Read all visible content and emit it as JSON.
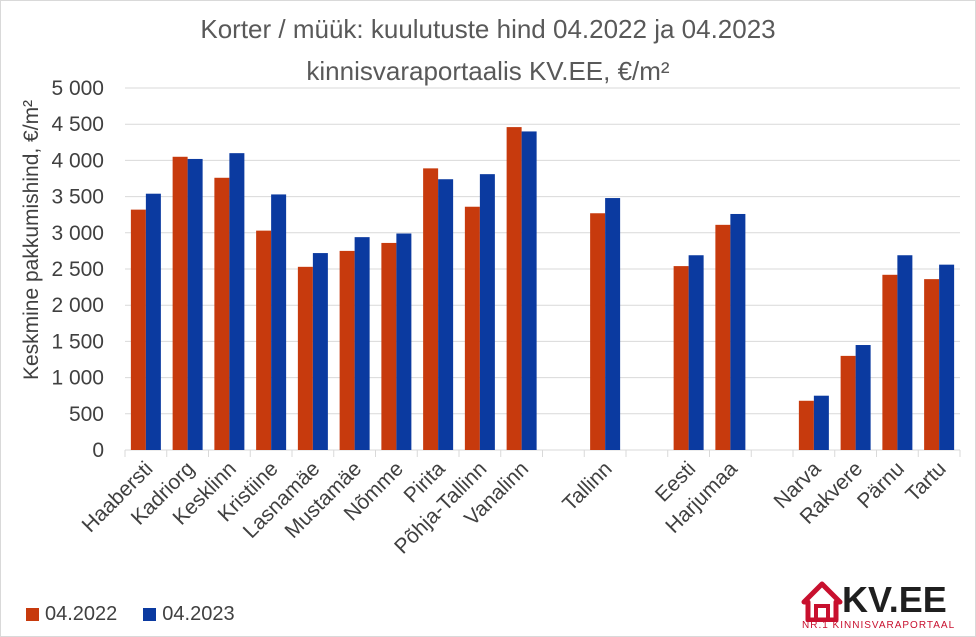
{
  "title": {
    "line1": "Korter / müük: kuulutuste hind 04.2022 ja 04.2023",
    "line2": "kinnisvaraportaalis KV.EE, €/m²"
  },
  "logo": {
    "text": "KV.EE",
    "subtitle": "NR.1 KINNISVARAPORTAAL",
    "color": "#c8102e"
  },
  "colors": {
    "series2022": "#c73a0d",
    "series2023": "#0b3aa0",
    "grid": "#d9d9d9",
    "axisText": "#404040"
  },
  "chart_data": {
    "type": "bar",
    "ylabel": "Keskmine pakkumishind, €/m²",
    "xlabel": "",
    "ylim": [
      0,
      5000
    ],
    "yticks": [
      0,
      500,
      1000,
      1500,
      2000,
      2500,
      3000,
      3500,
      4000,
      4500,
      5000
    ],
    "ytick_labels": [
      "0",
      "500",
      "1 000",
      "1 500",
      "2 000",
      "2 500",
      "3 000",
      "3 500",
      "4 000",
      "4 500",
      "5 000"
    ],
    "grid": true,
    "legend_position": "bottom-left",
    "categories": [
      "Haabersti",
      "Kadriorg",
      "Kesklinn",
      "Kristiine",
      "Lasnamäe",
      "Mustamäe",
      "Nõmme",
      "Pirita",
      "Põhja-Tallinn",
      "Vanalinn",
      "",
      "Tallinn",
      "",
      "Eesti",
      "Harjumaa",
      "",
      "Narva",
      "Rakvere",
      "Pärnu",
      "Tartu"
    ],
    "series": [
      {
        "name": "04.2022",
        "values": [
          3320,
          4050,
          3760,
          3030,
          2530,
          2750,
          2860,
          3890,
          3360,
          4460,
          null,
          3270,
          null,
          2540,
          3110,
          null,
          680,
          1300,
          2420,
          2360
        ]
      },
      {
        "name": "04.2023",
        "values": [
          3540,
          4020,
          4100,
          3530,
          2720,
          2940,
          2990,
          3740,
          3810,
          4400,
          null,
          3480,
          null,
          2690,
          3260,
          null,
          750,
          1450,
          2690,
          2560
        ]
      }
    ]
  }
}
